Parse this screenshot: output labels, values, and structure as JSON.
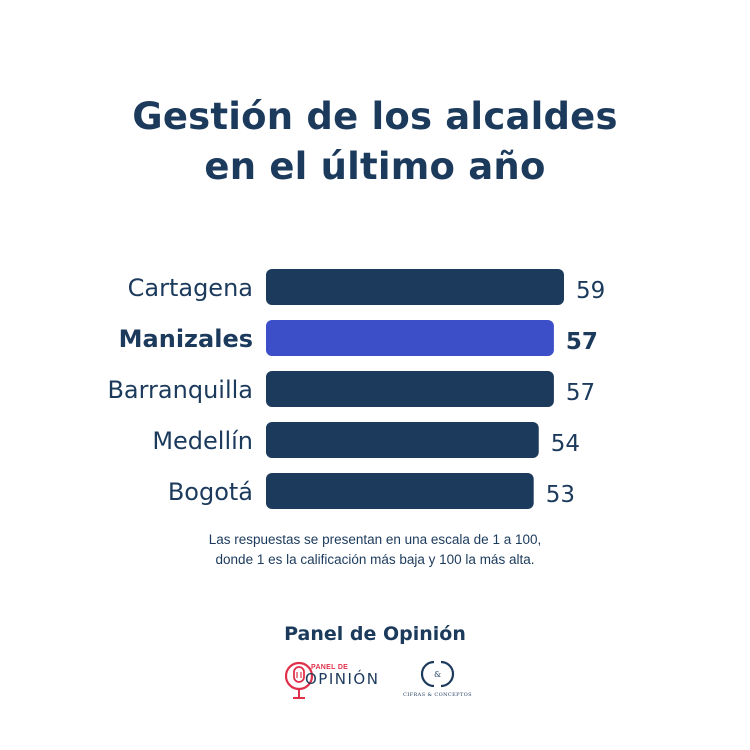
{
  "title": {
    "line1": "Gestión de los alcaldes",
    "line2": "en el último año"
  },
  "chart_data": {
    "type": "bar",
    "orientation": "horizontal",
    "categories": [
      "Cartagena",
      "Manizales",
      "Barranquilla",
      "Medellín",
      "Bogotá"
    ],
    "values": [
      59,
      57,
      57,
      54,
      53
    ],
    "highlight": "Manizales",
    "xlim": [
      0,
      59
    ],
    "grid": false,
    "colors": {
      "bar": "#1b3a5c",
      "highlight": "#3d4fc8",
      "text": "#1b3a5c"
    }
  },
  "note": {
    "line1": "Las respuestas se presentan en una escala de 1 a 100,",
    "line2": "donde 1 es la calificación más baja y 100 la más alta."
  },
  "footer": {
    "title": "Panel de Opinión",
    "logo_panel": {
      "small": "PANEL DE",
      "big": "OPINIÓN",
      "icon": "microphone-icon"
    },
    "logo_cc": {
      "monogram": "CC",
      "text": "CIFRAS & CONCEPTOS"
    }
  }
}
